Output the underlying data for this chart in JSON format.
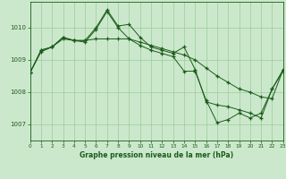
{
  "title": "Graphe pression niveau de la mer (hPa)",
  "background_color": "#cce8cc",
  "grid_color": "#99cc99",
  "line_color": "#1a5c1a",
  "xlim": [
    0,
    23
  ],
  "ylim": [
    1006.5,
    1010.8
  ],
  "yticks": [
    1007,
    1008,
    1009,
    1010
  ],
  "xticks": [
    0,
    1,
    2,
    3,
    4,
    5,
    6,
    7,
    8,
    9,
    10,
    11,
    12,
    13,
    14,
    15,
    16,
    17,
    18,
    19,
    20,
    21,
    22,
    23
  ],
  "series": [
    [
      1008.6,
      1009.3,
      1009.4,
      1009.7,
      1009.6,
      1009.6,
      1010.0,
      1010.55,
      1010.05,
      1010.1,
      1009.7,
      1009.4,
      1009.3,
      1009.2,
      1009.4,
      1008.7,
      1007.7,
      1007.6,
      1007.55,
      1007.45,
      1007.35,
      1007.2,
      1008.1,
      1008.7
    ],
    [
      1008.6,
      1009.3,
      1009.4,
      1009.65,
      1009.6,
      1009.6,
      1009.65,
      1009.65,
      1009.65,
      1009.65,
      1009.55,
      1009.45,
      1009.35,
      1009.25,
      1009.15,
      1009.0,
      1008.75,
      1008.5,
      1008.3,
      1008.1,
      1008.0,
      1007.85,
      1007.8,
      1008.7
    ],
    [
      1008.6,
      1009.25,
      1009.4,
      1009.7,
      1009.6,
      1009.55,
      1009.95,
      1010.5,
      1010.0,
      1009.65,
      1009.45,
      1009.3,
      1009.2,
      1009.1,
      1008.65,
      1008.65,
      1007.75,
      1007.05,
      1007.15,
      1007.35,
      1007.2,
      1007.35,
      1008.1,
      1008.65
    ]
  ]
}
